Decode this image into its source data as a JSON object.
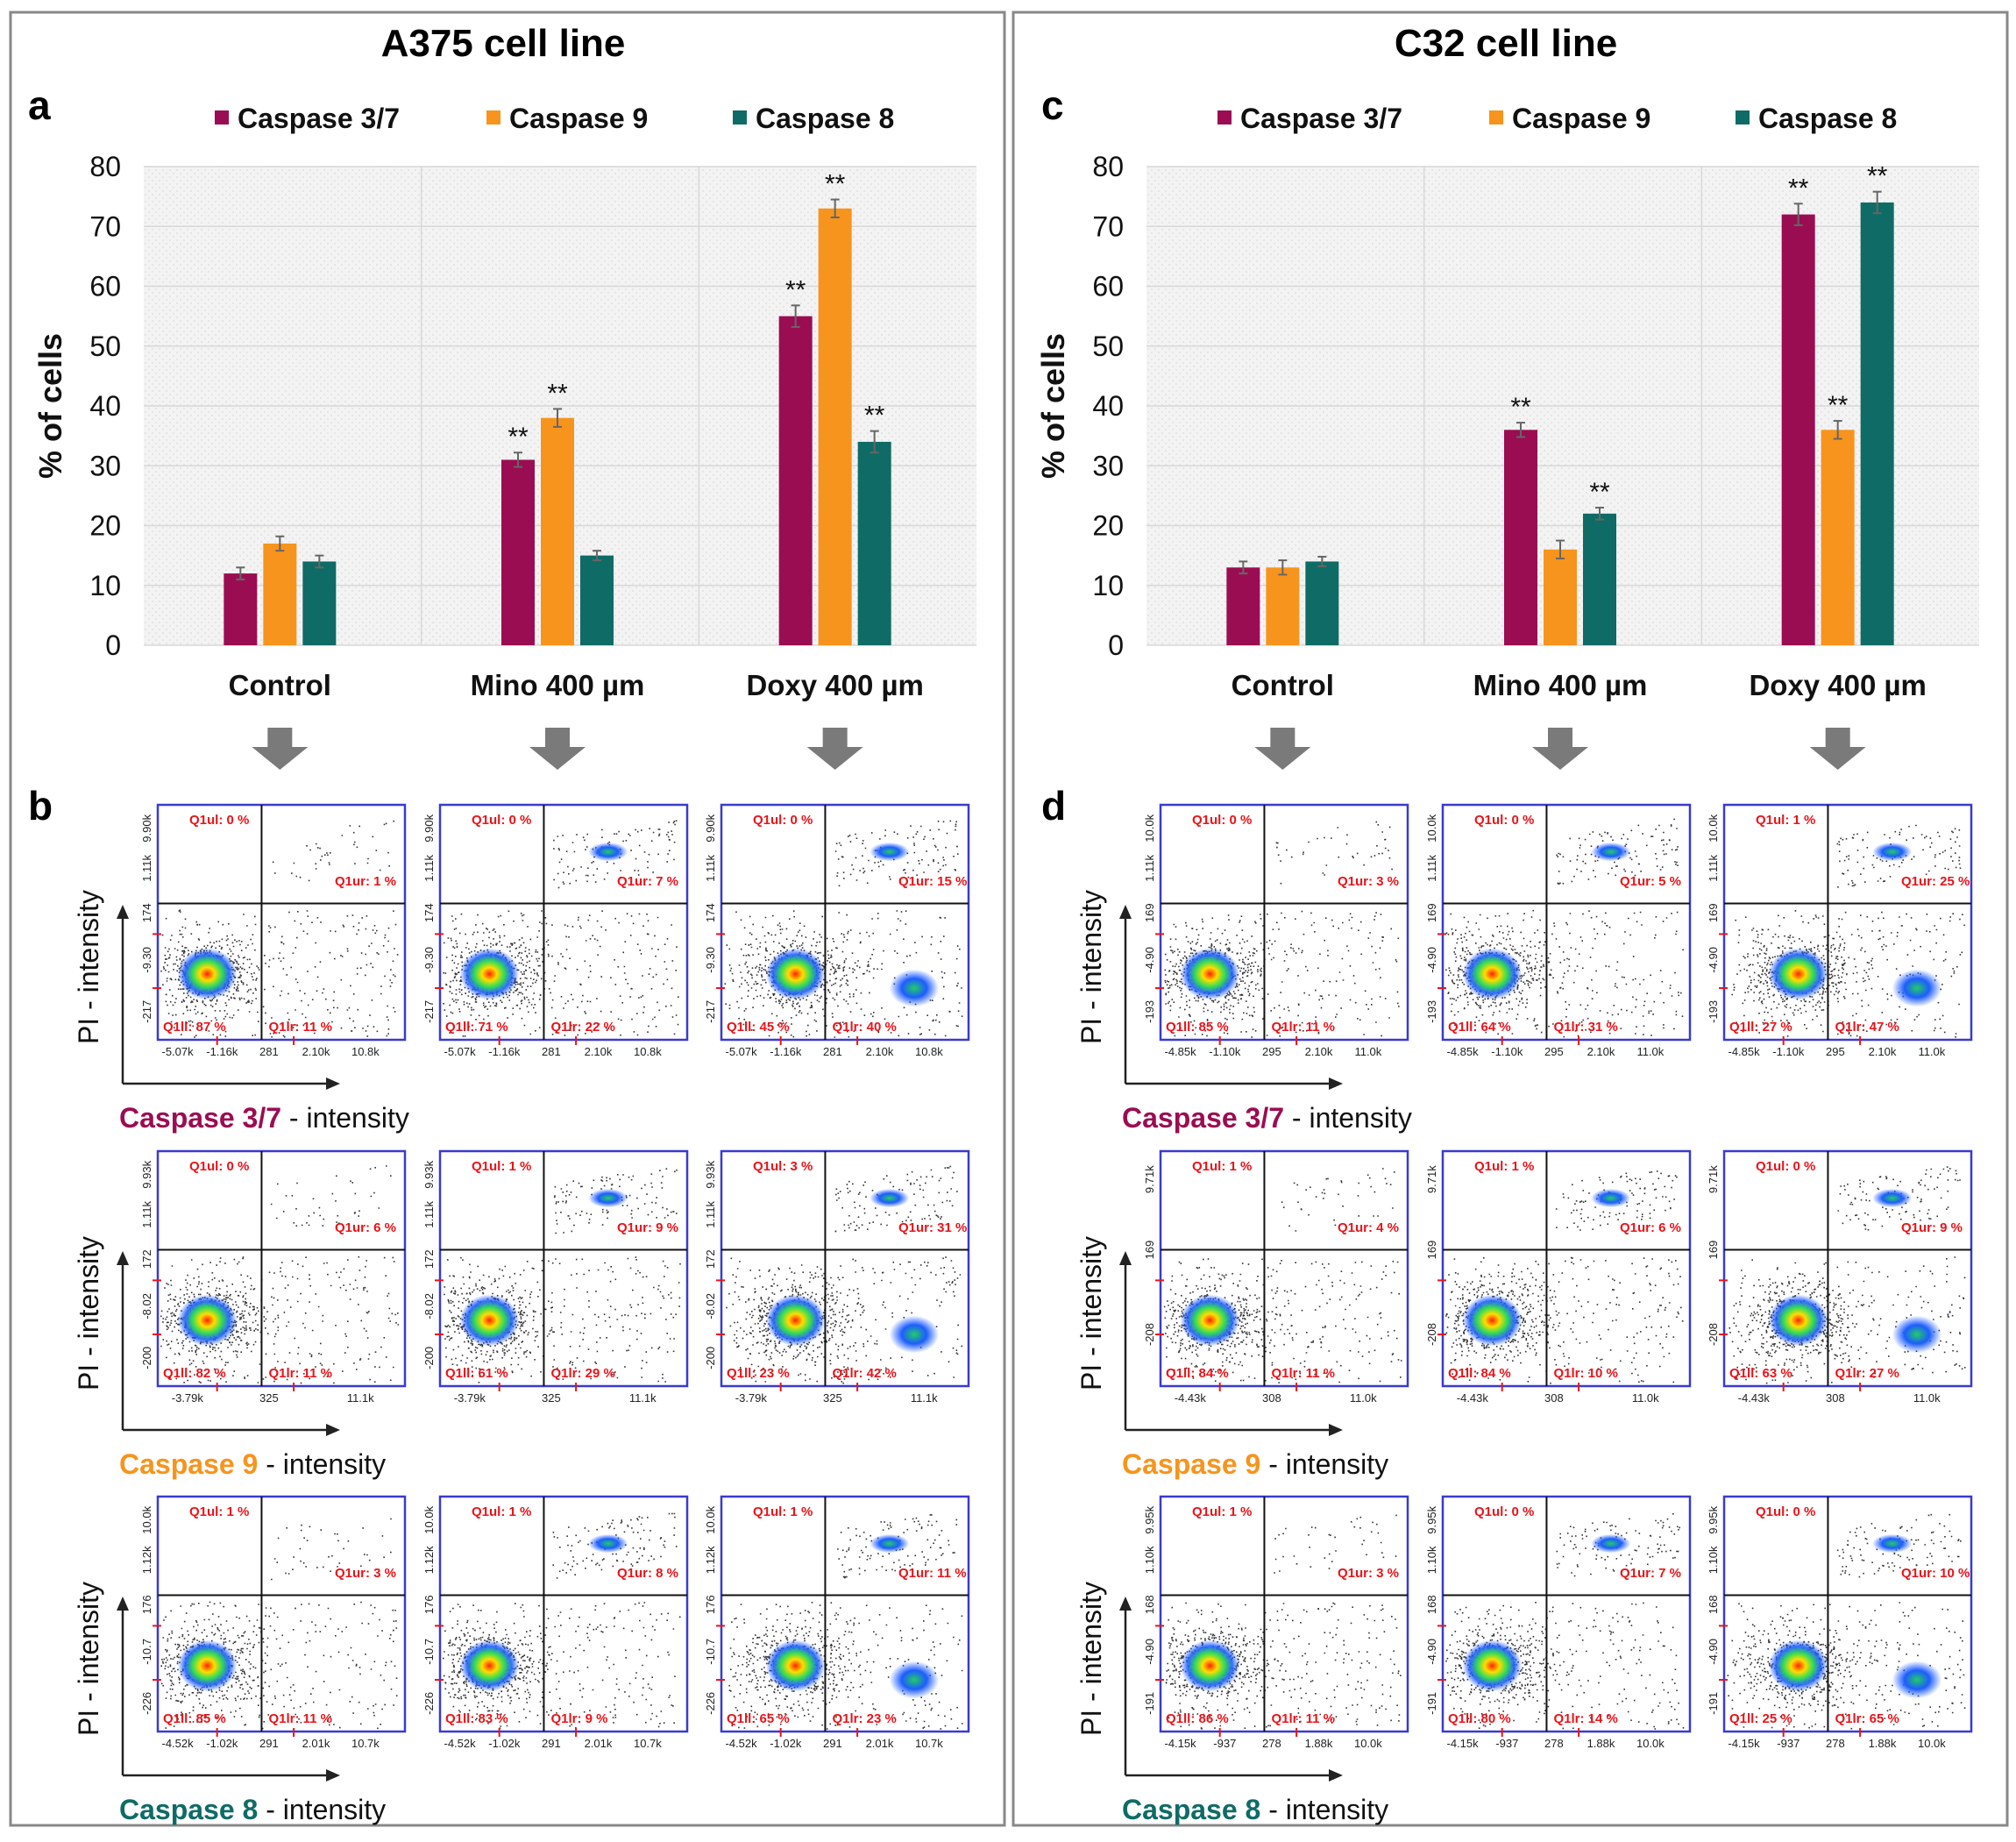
{
  "colors": {
    "caspase37": "#9b0d52",
    "caspase9": "#f7941d",
    "caspase8": "#0f6b66",
    "gate_text": "#e8141a",
    "plot_frame": "#3a3ad0"
  },
  "panels": [
    {
      "title": "A375 cell line",
      "chart_letter": "a",
      "flow_letter": "b",
      "chart_data": {
        "type": "bar",
        "categories": [
          "Control",
          "Mino 400 µm",
          "Doxy 400 µm"
        ],
        "series": [
          {
            "name": "Caspase 3/7",
            "values": [
              12,
              31,
              55
            ],
            "errors": [
              1,
              1.2,
              1.8
            ],
            "sig": [
              "",
              "**",
              "**"
            ]
          },
          {
            "name": "Caspase 9",
            "values": [
              17,
              38,
              73
            ],
            "errors": [
              1.2,
              1.5,
              1.5
            ],
            "sig": [
              "",
              "**",
              "**"
            ]
          },
          {
            "name": "Caspase 8",
            "values": [
              14,
              15,
              34
            ],
            "errors": [
              1,
              0.8,
              1.8
            ],
            "sig": [
              "",
              "",
              "**"
            ]
          }
        ],
        "ylabel": "% of cells",
        "ylim": [
          0,
          80
        ],
        "yticks": [
          0,
          10,
          20,
          30,
          40,
          50,
          60,
          70,
          80
        ]
      },
      "flow_rows": [
        {
          "marker": "Caspase 3/7",
          "suffix": " - intensity",
          "ylabel": "PI - intensity",
          "xticks": [
            "-5.07k",
            "-1.16k",
            "281",
            "2.10k",
            "10.8k"
          ],
          "yticks": [
            "-217",
            "-9.30",
            "174",
            "1.11k",
            "9.90k"
          ],
          "plots": [
            {
              "gates": [
                "Q1ul: 0 %",
                "Q1ur: 1 %",
                "Q1ll: 87 %",
                "Q1lr: 11 %"
              ]
            },
            {
              "gates": [
                "Q1ul: 0 %",
                "Q1ur: 7 %",
                "Q1ll: 71 %",
                "Q1lr: 22 %"
              ]
            },
            {
              "gates": [
                "Q1ul: 0 %",
                "Q1ur: 15 %",
                "Q1ll: 45 %",
                "Q1lr: 40 %"
              ]
            }
          ]
        },
        {
          "marker": "Caspase 9",
          "suffix": " - intensity",
          "ylabel": "PI - intensity",
          "xticks": [
            "-3.79k",
            "325",
            "11.1k"
          ],
          "yticks": [
            "-200",
            "-8.02",
            "172",
            "1.11k",
            "9.93k"
          ],
          "plots": [
            {
              "gates": [
                "Q1ul: 0 %",
                "Q1ur: 6 %",
                "Q1ll: 82 %",
                "Q1lr: 11 %"
              ]
            },
            {
              "gates": [
                "Q1ul: 1 %",
                "Q1ur: 9 %",
                "Q1ll: 61 %",
                "Q1lr: 29 %"
              ]
            },
            {
              "gates": [
                "Q1ul: 3 %",
                "Q1ur: 31 %",
                "Q1ll: 23 %",
                "Q1lr: 42 %"
              ]
            }
          ]
        },
        {
          "marker": "Caspase 8",
          "suffix": " - intensity",
          "ylabel": "PI - intensity",
          "xticks": [
            "-4.52k",
            "-1.02k",
            "291",
            "2.01k",
            "10.7k"
          ],
          "yticks": [
            "-226",
            "-10.7",
            "176",
            "1.12k",
            "10.0k"
          ],
          "plots": [
            {
              "gates": [
                "Q1ul: 1 %",
                "Q1ur: 3 %",
                "Q1ll: 85 %",
                "Q1lr: 11 %"
              ]
            },
            {
              "gates": [
                "Q1ul: 1 %",
                "Q1ur: 8 %",
                "Q1ll: 83 %",
                "Q1lr: 9 %"
              ]
            },
            {
              "gates": [
                "Q1ul: 1 %",
                "Q1ur: 11 %",
                "Q1ll: 65 %",
                "Q1lr: 23 %"
              ]
            }
          ]
        }
      ]
    },
    {
      "title": "C32 cell line",
      "chart_letter": "c",
      "flow_letter": "d",
      "chart_data": {
        "type": "bar",
        "categories": [
          "Control",
          "Mino 400 µm",
          "Doxy 400 µm"
        ],
        "series": [
          {
            "name": "Caspase 3/7",
            "values": [
              13,
              36,
              72
            ],
            "errors": [
              1,
              1.2,
              1.8
            ],
            "sig": [
              "",
              "**",
              "**"
            ]
          },
          {
            "name": "Caspase 9",
            "values": [
              13,
              16,
              36
            ],
            "errors": [
              1.2,
              1.5,
              1.5
            ],
            "sig": [
              "",
              "",
              "**"
            ]
          },
          {
            "name": "Caspase 8",
            "values": [
              14,
              22,
              74
            ],
            "errors": [
              0.8,
              1,
              1.8
            ],
            "sig": [
              "",
              "**",
              "**"
            ]
          }
        ],
        "ylabel": "% of cells",
        "ylim": [
          0,
          80
        ],
        "yticks": [
          0,
          10,
          20,
          30,
          40,
          50,
          60,
          70,
          80
        ]
      },
      "flow_rows": [
        {
          "marker": "Caspase 3/7",
          "suffix": " - intensity",
          "ylabel": "PI - intensity",
          "xticks": [
            "-4.85k",
            "-1.10k",
            "295",
            "2.10k",
            "11.0k"
          ],
          "yticks": [
            "-193",
            "-4.90",
            "169",
            "1.11k",
            "10.0k"
          ],
          "plots": [
            {
              "gates": [
                "Q1ul: 0 %",
                "Q1ur: 3 %",
                "Q1ll: 85 %",
                "Q1lr: 11 %"
              ]
            },
            {
              "gates": [
                "Q1ul: 0 %",
                "Q1ur: 5 %",
                "Q1ll: 64 %",
                "Q1lr: 31 %"
              ]
            },
            {
              "gates": [
                "Q1ul: 1 %",
                "Q1ur: 25 %",
                "Q1ll: 27 %",
                "Q1lr: 47 %"
              ]
            }
          ]
        },
        {
          "marker": "Caspase 9",
          "suffix": " - intensity",
          "ylabel": "PI - intensity",
          "xticks": [
            "-4.43k",
            "308",
            "11.0k"
          ],
          "yticks": [
            "-208",
            "169",
            "9.71k"
          ],
          "plots": [
            {
              "gates": [
                "Q1ul: 1 %",
                "Q1ur: 4 %",
                "Q1ll: 84 %",
                "Q1lr: 11 %"
              ]
            },
            {
              "gates": [
                "Q1ul: 1 %",
                "Q1ur: 6 %",
                "Q1ll: 84 %",
                "Q1lr: 10 %"
              ]
            },
            {
              "gates": [
                "Q1ul: 0 %",
                "Q1ur: 9 %",
                "Q1ll: 63 %",
                "Q1lr: 27 %"
              ]
            }
          ]
        },
        {
          "marker": "Caspase 8",
          "suffix": " - intensity",
          "ylabel": "PI - intensity",
          "xticks": [
            "-4.15k",
            "-937",
            "278",
            "1.88k",
            "10.0k"
          ],
          "yticks": [
            "-191",
            "-4.90",
            "168",
            "1.10k",
            "9.95k"
          ],
          "plots": [
            {
              "gates": [
                "Q1ul: 1 %",
                "Q1ur: 3 %",
                "Q1ll: 86 %",
                "Q1lr: 11 %"
              ]
            },
            {
              "gates": [
                "Q1ul: 0 %",
                "Q1ur: 7 %",
                "Q1ll: 80 %",
                "Q1lr: 14 %"
              ]
            },
            {
              "gates": [
                "Q1ul: 0 %",
                "Q1ur: 10 %",
                "Q1ll: 25 %",
                "Q1lr: 65 %"
              ]
            }
          ]
        }
      ]
    }
  ]
}
